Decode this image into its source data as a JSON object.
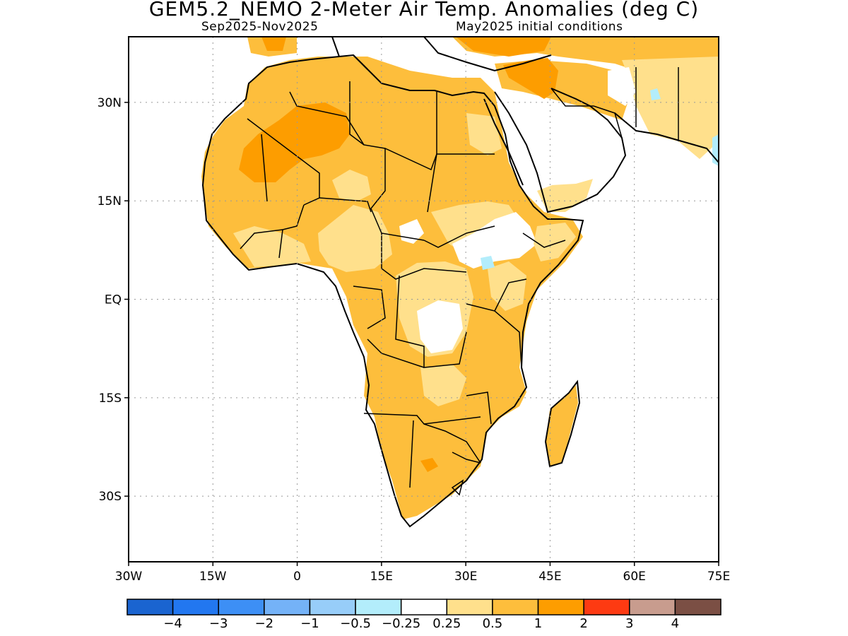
{
  "header": {
    "title": "GEM5.2_NEMO 2-Meter Air Temp. Anomalies (deg C)",
    "period": "Sep2025-Nov2025",
    "init": "May2025 initial conditions"
  },
  "map": {
    "lon_range": [
      -30,
      75
    ],
    "lat_range": [
      -40,
      40
    ],
    "lat_ticks": [
      {
        "label": "30N",
        "value": 30
      },
      {
        "label": "15N",
        "value": 15
      },
      {
        "label": "EQ",
        "value": 0
      },
      {
        "label": "15S",
        "value": -15
      },
      {
        "label": "30S",
        "value": -30
      }
    ],
    "lon_ticks": [
      {
        "label": "30W",
        "value": -30
      },
      {
        "label": "15W",
        "value": -15
      },
      {
        "label": "0",
        "value": 0
      },
      {
        "label": "15E",
        "value": 15
      },
      {
        "label": "30E",
        "value": 30
      },
      {
        "label": "45E",
        "value": 45
      },
      {
        "label": "60E",
        "value": 60
      },
      {
        "label": "75E",
        "value": 75
      }
    ],
    "grid": "dotted"
  },
  "colorbar": {
    "colors": [
      "#1a64d0",
      "#2277f0",
      "#3d8ff5",
      "#74b2f7",
      "#97cdf9",
      "#b3edfb",
      "#ffffff",
      "#ffe08c",
      "#fdbe3c",
      "#fd9d00",
      "#fd3a12",
      "#c89c8e",
      "#7b4f44"
    ],
    "labels": [
      "-4",
      "-3",
      "-2",
      "-1",
      "-0.5",
      "-0.25",
      "0.25",
      "0.5",
      "1",
      "2",
      "3",
      "4"
    ]
  }
}
